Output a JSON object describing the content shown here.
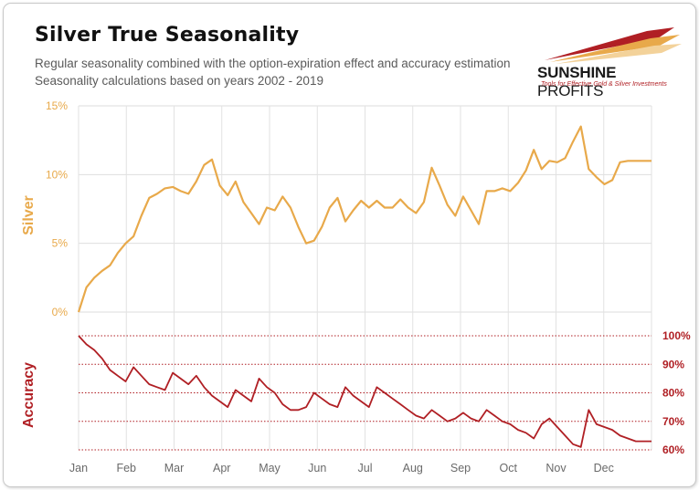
{
  "header": {
    "title": "Silver True Seasonality",
    "subtitle1": "Regular seasonality combined with the option-expiration effect and accuracy estimation",
    "subtitle2": "Seasonality calculations based on years 2002 - 2019"
  },
  "logo": {
    "brand_bold": "SUNSHINE",
    "brand_light": " PROFITS",
    "tagline": "Tools for Effective Gold & Silver Investments"
  },
  "colors": {
    "silver": "#E8A94A",
    "accuracy": "#B01F24",
    "grid": "#DDDDDD"
  },
  "chart_data": {
    "type": "line",
    "title": "Silver True Seasonality",
    "x_tick_labels": [
      "Jan",
      "Feb",
      "Mar",
      "Apr",
      "May",
      "Jun",
      "Jul",
      "Aug",
      "Sep",
      "Oct",
      "Nov",
      "Dec"
    ],
    "silver": {
      "ylabel": "Silver",
      "ylim": [
        0,
        15
      ],
      "tick_labels": [
        "0%",
        "5%",
        "10%",
        "15%"
      ],
      "tick_values": [
        0,
        5,
        10,
        15
      ],
      "x": [
        0,
        5,
        10,
        15,
        20,
        25,
        30,
        35,
        40,
        45,
        50,
        55,
        60,
        65,
        70,
        75,
        80,
        85,
        90,
        95,
        100,
        105,
        110,
        115,
        120,
        125,
        130,
        135,
        140,
        145,
        150,
        155,
        160,
        165,
        170,
        175,
        180,
        185,
        190,
        195,
        200,
        205,
        210,
        215,
        220,
        225,
        230,
        235,
        240,
        245,
        250,
        255,
        260,
        265,
        270,
        275,
        280,
        285,
        290,
        295,
        300,
        305,
        310,
        315,
        320,
        325,
        330,
        335,
        340,
        345,
        350,
        355,
        360,
        365
      ],
      "values": [
        0.0,
        1.8,
        2.5,
        3.0,
        3.4,
        4.3,
        5.0,
        5.5,
        7.0,
        8.3,
        8.6,
        9.0,
        9.1,
        8.8,
        8.6,
        9.5,
        10.7,
        11.1,
        9.2,
        8.5,
        9.5,
        8.0,
        7.2,
        6.4,
        7.6,
        7.4,
        8.4,
        7.6,
        6.2,
        5.0,
        5.2,
        6.2,
        7.6,
        8.3,
        6.6,
        7.4,
        8.1,
        7.6,
        8.1,
        7.6,
        7.6,
        8.2,
        7.6,
        7.2,
        8.0,
        10.5,
        9.2,
        7.8,
        7.0,
        8.4,
        7.4,
        6.4,
        8.8,
        8.8,
        9.0,
        8.8,
        9.4,
        10.3,
        11.8,
        10.4,
        11.0,
        10.9,
        11.2,
        12.4,
        13.5,
        10.4,
        9.8,
        9.3,
        9.6,
        10.9,
        11.0,
        11.0,
        11.0,
        11.0
      ]
    },
    "accuracy": {
      "ylabel": "Accuracy",
      "ylim": [
        60,
        100
      ],
      "tick_labels": [
        "60%",
        "70%",
        "80%",
        "90%",
        "100%"
      ],
      "tick_values": [
        60,
        70,
        80,
        90,
        100
      ],
      "x": [
        0,
        5,
        10,
        15,
        20,
        25,
        30,
        35,
        40,
        45,
        50,
        55,
        60,
        65,
        70,
        75,
        80,
        85,
        90,
        95,
        100,
        105,
        110,
        115,
        120,
        125,
        130,
        135,
        140,
        145,
        150,
        155,
        160,
        165,
        170,
        175,
        180,
        185,
        190,
        195,
        200,
        205,
        210,
        215,
        220,
        225,
        230,
        235,
        240,
        245,
        250,
        255,
        260,
        265,
        270,
        275,
        280,
        285,
        290,
        295,
        300,
        305,
        310,
        315,
        320,
        325,
        330,
        335,
        340,
        345,
        350,
        355,
        360,
        365
      ],
      "values": [
        100,
        97,
        95,
        92,
        88,
        86,
        84,
        89,
        86,
        83,
        82,
        81,
        87,
        85,
        83,
        86,
        82,
        79,
        77,
        75,
        81,
        79,
        77,
        85,
        82,
        80,
        76,
        74,
        74,
        75,
        80,
        78,
        76,
        75,
        82,
        79,
        77,
        75,
        82,
        80,
        78,
        76,
        74,
        72,
        71,
        74,
        72,
        70,
        71,
        73,
        71,
        70,
        74,
        72,
        70,
        69,
        67,
        66,
        64,
        69,
        71,
        68,
        65,
        62,
        61,
        74,
        69,
        68,
        67,
        65,
        64,
        63,
        63,
        63
      ]
    }
  }
}
